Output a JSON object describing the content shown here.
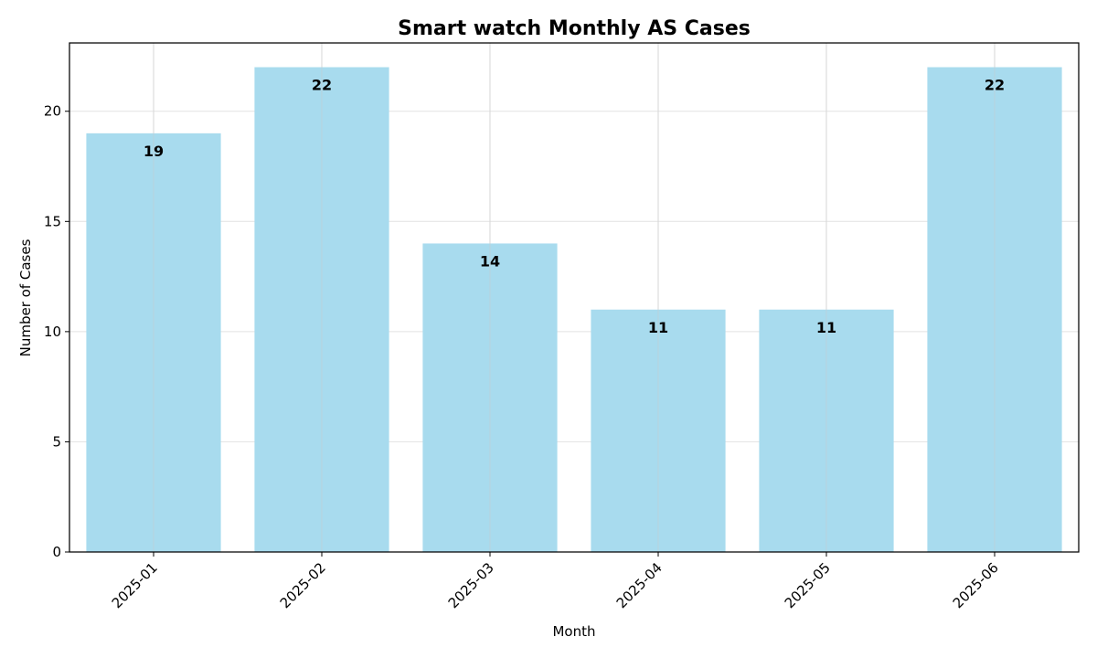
{
  "chart_data": {
    "type": "bar",
    "title": "Smart watch Monthly AS Cases",
    "xlabel": "Month",
    "ylabel": "Number of Cases",
    "categories": [
      "2025-01",
      "2025-02",
      "2025-03",
      "2025-04",
      "2025-05",
      "2025-06"
    ],
    "values": [
      19,
      22,
      14,
      11,
      11,
      22
    ],
    "data_labels": [
      "19",
      "22",
      "14",
      "11",
      "11",
      "22"
    ],
    "ylim": [
      0,
      23.1
    ],
    "y_ticks": [
      0,
      5,
      10,
      15,
      20
    ],
    "y_tick_labels": [
      "0",
      "5",
      "10",
      "15",
      "20"
    ],
    "grid": true,
    "bar_color": "#a8dbee",
    "x_tick_rotation": 45
  }
}
